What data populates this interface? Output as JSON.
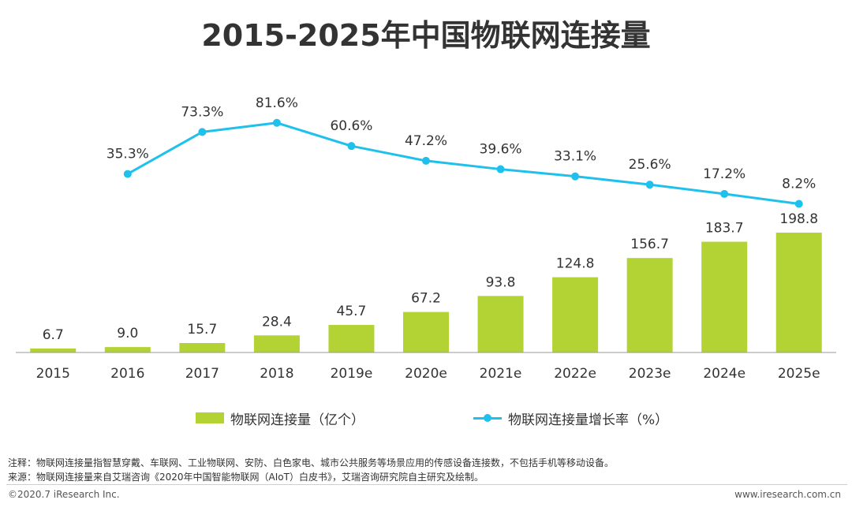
{
  "title": "2015-2025年中国物联网连接量",
  "chart_data": {
    "type": "bar",
    "categories": [
      "2015",
      "2016",
      "2017",
      "2018",
      "2019e",
      "2020e",
      "2021e",
      "2022e",
      "2023e",
      "2024e",
      "2025e"
    ],
    "series": [
      {
        "name": "物联网连接量（亿个）",
        "type": "bar",
        "values": [
          6.7,
          9.0,
          15.7,
          28.4,
          45.7,
          67.2,
          93.8,
          124.8,
          156.7,
          183.7,
          198.8
        ],
        "labels": [
          "6.7",
          "9.0",
          "15.7",
          "28.4",
          "45.7",
          "67.2",
          "93.8",
          "124.8",
          "156.7",
          "183.7",
          "198.8"
        ]
      },
      {
        "name": "物联网连接量增长率（%）",
        "type": "line",
        "values": [
          null,
          35.3,
          73.3,
          81.6,
          60.6,
          47.2,
          39.6,
          33.1,
          25.6,
          17.2,
          8.2
        ],
        "labels": [
          "",
          "35.3%",
          "73.3%",
          "81.6%",
          "60.6%",
          "47.2%",
          "39.6%",
          "33.1%",
          "25.6%",
          "17.2%",
          "8.2%"
        ]
      }
    ],
    "legend_position": "bottom",
    "grid": false,
    "colors": {
      "bar": "#b3d334",
      "line": "#1fc1ec",
      "axis": "#999999",
      "text": "#333333"
    }
  },
  "notes": {
    "note": "注释：物联网连接量指智慧穿戴、车联网、工业物联网、安防、白色家电、城市公共服务等场景应用的传感设备连接数，不包括手机等移动设备。",
    "source": "来源：物联网连接量来自艾瑞咨询《2020年中国智能物联网（AIoT）白皮书》，艾瑞咨询研究院自主研究及绘制。"
  },
  "footer": {
    "copyright": "©2020.7 iResearch Inc.",
    "website": "www.iresearch.com.cn"
  }
}
